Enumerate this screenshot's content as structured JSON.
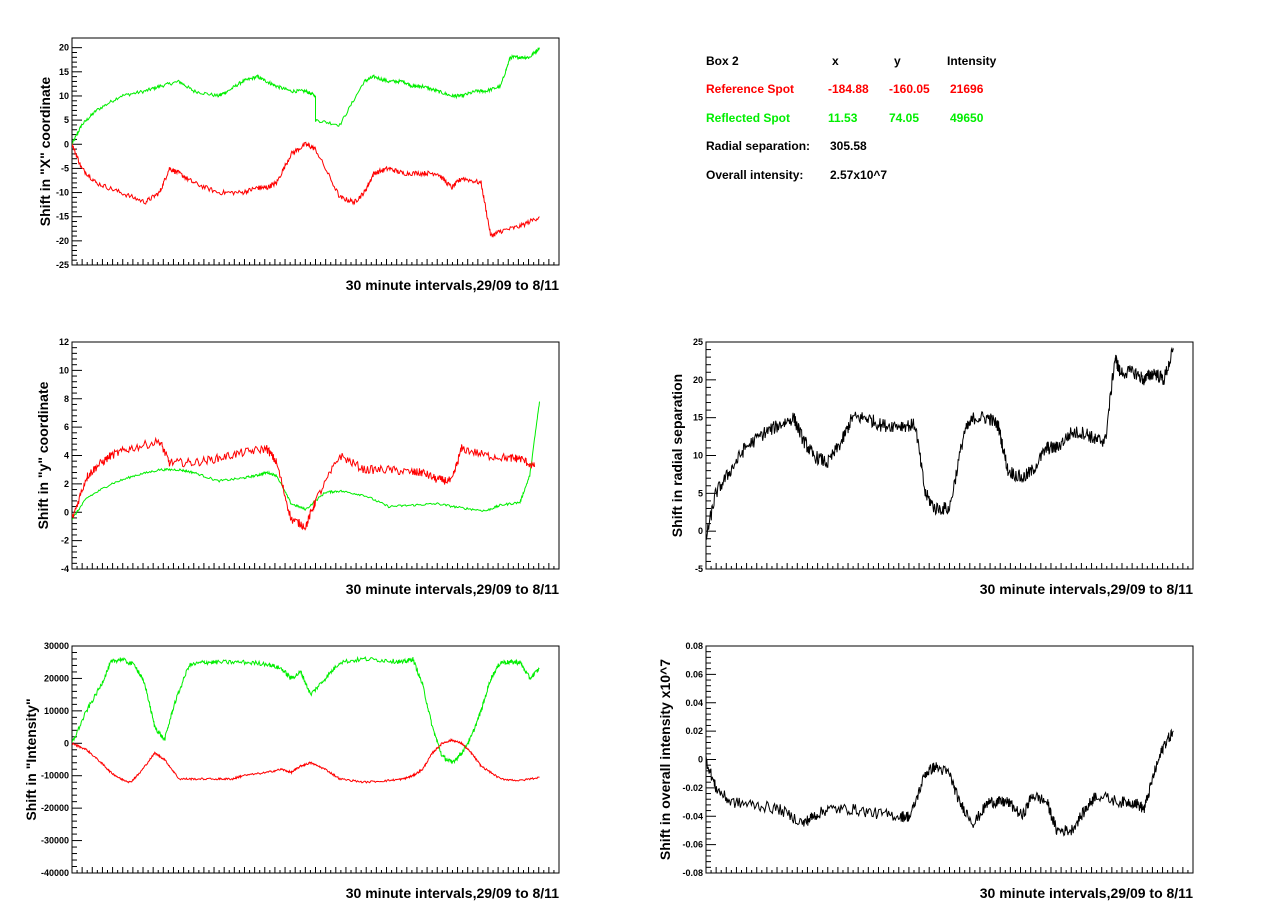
{
  "colors": {
    "reference": "#ff0000",
    "reflected": "#00ee00",
    "radial": "#000000"
  },
  "info": {
    "header": {
      "box": "Box 2",
      "x": "x",
      "y": "y",
      "intensity": "Intensity"
    },
    "reference": {
      "label": "Reference Spot",
      "x": "-184.88",
      "y": "-160.05",
      "intensity": "21696"
    },
    "reflected": {
      "label": "Reflected Spot",
      "x": "11.53",
      "y": "74.05",
      "intensity": "49650"
    },
    "radial": {
      "label": "Radial separation:",
      "value": "305.58"
    },
    "overall": {
      "label": "Overall intensity:",
      "value": "2.57x10^7"
    }
  },
  "chart_data": [
    {
      "id": "x",
      "type": "line",
      "xlabel": "30 minute intervals,29/09 to 8/11",
      "ylabel": "Shift in \"X\" coordinate",
      "ylim": [
        -25,
        22
      ],
      "yticks": [
        -25,
        -20,
        -15,
        -10,
        -5,
        0,
        5,
        10,
        15,
        20
      ],
      "xlim": [
        0,
        1
      ],
      "series": [
        {
          "color": "#00ee00",
          "noise": 0.35,
          "x": [
            0,
            0.02,
            0.05,
            0.1,
            0.15,
            0.18,
            0.22,
            0.25,
            0.3,
            0.32,
            0.35,
            0.38,
            0.4,
            0.42,
            0.45,
            0.48,
            0.5,
            0.5,
            0.55,
            0.6,
            0.62,
            0.65,
            0.68,
            0.7,
            0.72,
            0.75,
            0.78,
            0.8,
            0.83,
            0.85,
            0.88,
            0.9,
            0.92,
            0.94,
            0.96
          ],
          "y": [
            0,
            4,
            7,
            10,
            11,
            12,
            13,
            11,
            10,
            11,
            13,
            14,
            13,
            12,
            11,
            11,
            10,
            5,
            4,
            13,
            14,
            13,
            13,
            12,
            12,
            11,
            10,
            10,
            11,
            11,
            12,
            18,
            18,
            18,
            20
          ]
        },
        {
          "color": "#ff0000",
          "noise": 0.5,
          "x": [
            0,
            0.02,
            0.05,
            0.1,
            0.15,
            0.18,
            0.2,
            0.22,
            0.25,
            0.3,
            0.35,
            0.38,
            0.4,
            0.42,
            0.45,
            0.48,
            0.5,
            0.55,
            0.58,
            0.6,
            0.62,
            0.65,
            0.68,
            0.72,
            0.75,
            0.78,
            0.8,
            0.84,
            0.86,
            0.88,
            0.92,
            0.96
          ],
          "y": [
            0,
            -5,
            -8,
            -10,
            -12,
            -10,
            -5,
            -6,
            -8,
            -10,
            -10,
            -9,
            -9,
            -8,
            -2,
            0,
            -1,
            -11,
            -12,
            -10,
            -6,
            -5,
            -6,
            -6,
            -6,
            -9,
            -7,
            -8,
            -19,
            -18,
            -17,
            -15
          ]
        }
      ]
    },
    {
      "id": "y",
      "type": "line",
      "xlabel": "30 minute intervals,29/09 to 8/11",
      "ylabel": "Shift in \"y\" coordinate",
      "ylim": [
        -4,
        12
      ],
      "yticks": [
        -4,
        -2,
        0,
        2,
        4,
        6,
        8,
        10,
        12
      ],
      "xlim": [
        0,
        1
      ],
      "series": [
        {
          "color": "#00ee00",
          "noise": 0.08,
          "x": [
            0,
            0.03,
            0.08,
            0.13,
            0.18,
            0.22,
            0.25,
            0.3,
            0.35,
            0.38,
            0.4,
            0.42,
            0.45,
            0.48,
            0.52,
            0.55,
            0.6,
            0.65,
            0.7,
            0.75,
            0.8,
            0.85,
            0.88,
            0.92,
            0.94,
            0.96
          ],
          "y": [
            -0.5,
            1.0,
            2.0,
            2.6,
            3.0,
            3.0,
            2.8,
            2.2,
            2.4,
            2.6,
            2.8,
            2.6,
            0.6,
            0.2,
            1.4,
            1.5,
            1.2,
            0.4,
            0.5,
            0.6,
            0.3,
            0.1,
            0.5,
            0.7,
            2.6,
            7.8
          ]
        },
        {
          "color": "#ff0000",
          "noise": 0.3,
          "x": [
            0,
            0.03,
            0.05,
            0.08,
            0.12,
            0.18,
            0.2,
            0.25,
            0.3,
            0.35,
            0.4,
            0.42,
            0.45,
            0.48,
            0.5,
            0.55,
            0.6,
            0.65,
            0.7,
            0.72,
            0.75,
            0.78,
            0.8,
            0.85,
            0.9,
            0.92,
            0.95
          ],
          "y": [
            -0.5,
            2.5,
            3.2,
            4.0,
            4.5,
            5.0,
            3.5,
            3.5,
            3.8,
            4.2,
            4.5,
            3.5,
            -0.5,
            -1.0,
            0.8,
            4.0,
            3.0,
            3.0,
            2.8,
            2.8,
            2.3,
            2.2,
            4.5,
            4.0,
            3.8,
            3.8,
            3.2
          ]
        }
      ]
    },
    {
      "id": "radial",
      "type": "line",
      "xlabel": "30 minute intervals,29/09 to 8/11",
      "ylabel": "Shift in radial separation",
      "ylim": [
        -5,
        25
      ],
      "yticks": [
        -5,
        0,
        5,
        10,
        15,
        20,
        25
      ],
      "xlim": [
        0,
        1
      ],
      "series": [
        {
          "color": "#000000",
          "noise": 0.9,
          "x": [
            0,
            0.02,
            0.05,
            0.08,
            0.12,
            0.15,
            0.18,
            0.2,
            0.22,
            0.25,
            0.28,
            0.3,
            0.33,
            0.36,
            0.4,
            0.43,
            0.45,
            0.47,
            0.5,
            0.53,
            0.55,
            0.58,
            0.6,
            0.62,
            0.65,
            0.67,
            0.7,
            0.72,
            0.75,
            0.78,
            0.8,
            0.82,
            0.84,
            0.85,
            0.88,
            0.9,
            0.92,
            0.94,
            0.96
          ],
          "y": [
            -1,
            5,
            8,
            11,
            13,
            14,
            15,
            12,
            10,
            9,
            12,
            15,
            15,
            14,
            14,
            14,
            5,
            3,
            3,
            13,
            15,
            15,
            14,
            8,
            7,
            8,
            11,
            11,
            13,
            13,
            12,
            12,
            23,
            21,
            21,
            20,
            21,
            20,
            24
          ]
        }
      ]
    },
    {
      "id": "intensity",
      "type": "line",
      "xlabel": "30 minute intervals,29/09 to 8/11",
      "ylabel": "Shift in \"Intensity\"",
      "ylim": [
        -40000,
        30000
      ],
      "yticks": [
        -40000,
        -30000,
        -20000,
        -10000,
        0,
        10000,
        20000,
        30000
      ],
      "xlim": [
        0,
        1
      ],
      "series": [
        {
          "color": "#00ee00",
          "noise": 700,
          "x": [
            0,
            0.03,
            0.06,
            0.08,
            0.1,
            0.13,
            0.15,
            0.17,
            0.19,
            0.21,
            0.24,
            0.27,
            0.3,
            0.35,
            0.4,
            0.43,
            0.45,
            0.47,
            0.49,
            0.52,
            0.55,
            0.6,
            0.65,
            0.68,
            0.7,
            0.72,
            0.74,
            0.76,
            0.78,
            0.8,
            0.82,
            0.84,
            0.86,
            0.88,
            0.9,
            0.92,
            0.94,
            0.96
          ],
          "y": [
            0,
            10000,
            18000,
            25000,
            26000,
            24000,
            18000,
            5000,
            1000,
            12000,
            24000,
            25000,
            25000,
            25000,
            24500,
            23000,
            20000,
            22000,
            15000,
            20000,
            25000,
            26000,
            25500,
            25000,
            26000,
            18000,
            5000,
            -4000,
            -6000,
            -3000,
            2000,
            10000,
            20000,
            25000,
            25000,
            25000,
            20000,
            23000
          ]
        },
        {
          "color": "#ff0000",
          "noise": 300,
          "x": [
            0,
            0.03,
            0.06,
            0.08,
            0.1,
            0.12,
            0.14,
            0.17,
            0.19,
            0.22,
            0.25,
            0.3,
            0.33,
            0.35,
            0.4,
            0.43,
            0.45,
            0.47,
            0.49,
            0.52,
            0.55,
            0.6,
            0.65,
            0.68,
            0.7,
            0.72,
            0.74,
            0.76,
            0.78,
            0.8,
            0.82,
            0.84,
            0.88,
            0.92,
            0.96
          ],
          "y": [
            0,
            -2000,
            -6000,
            -9000,
            -11000,
            -12000,
            -9000,
            -3000,
            -5000,
            -11000,
            -11000,
            -11000,
            -11000,
            -10000,
            -9000,
            -8000,
            -9000,
            -7000,
            -6000,
            -8000,
            -11000,
            -12000,
            -11500,
            -11000,
            -10000,
            -8000,
            -3000,
            0,
            1000,
            0,
            -3000,
            -7000,
            -11000,
            -11500,
            -10500
          ]
        }
      ]
    },
    {
      "id": "overall",
      "type": "line",
      "xlabel": "30 minute intervals,29/09 to 8/11",
      "ylabel": "Shift in overall intensity x10^7",
      "ylim": [
        -0.08,
        0.08
      ],
      "yticks": [
        -0.08,
        -0.06,
        -0.04,
        -0.02,
        0,
        0.02,
        0.04,
        0.06,
        0.08
      ],
      "xlim": [
        0,
        1
      ],
      "series": [
        {
          "color": "#000000",
          "noise": 0.004,
          "x": [
            0,
            0.02,
            0.05,
            0.1,
            0.15,
            0.2,
            0.22,
            0.25,
            0.3,
            0.35,
            0.4,
            0.42,
            0.45,
            0.47,
            0.5,
            0.52,
            0.55,
            0.58,
            0.6,
            0.62,
            0.65,
            0.67,
            0.7,
            0.72,
            0.75,
            0.78,
            0.8,
            0.85,
            0.88,
            0.9,
            0.92,
            0.94,
            0.96
          ],
          "y": [
            0,
            -0.02,
            -0.03,
            -0.032,
            -0.035,
            -0.045,
            -0.04,
            -0.035,
            -0.035,
            -0.038,
            -0.04,
            -0.04,
            -0.01,
            -0.005,
            -0.01,
            -0.03,
            -0.045,
            -0.03,
            -0.03,
            -0.03,
            -0.04,
            -0.025,
            -0.03,
            -0.05,
            -0.05,
            -0.035,
            -0.025,
            -0.03,
            -0.03,
            -0.035,
            -0.01,
            0.01,
            0.02
          ]
        }
      ]
    }
  ]
}
